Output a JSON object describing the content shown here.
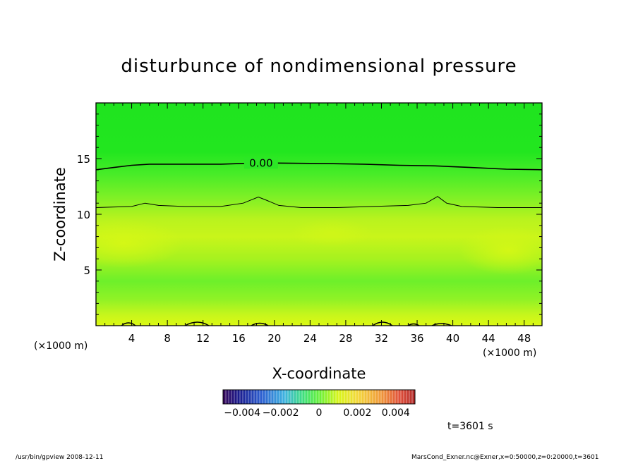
{
  "chart_data": {
    "type": "heatmap",
    "title": "disturbunce of nondimensional pressure",
    "xlabel": "X-coordinate",
    "ylabel": "Z-coordinate",
    "x_unit_left": "(×1000 m)",
    "x_unit_right": "(×1000 m)",
    "xlim": [
      0,
      50
    ],
    "ylim": [
      0,
      20
    ],
    "x_ticks": [
      4,
      8,
      12,
      16,
      20,
      24,
      28,
      32,
      36,
      40,
      44,
      48
    ],
    "y_ticks": [
      5,
      10,
      15
    ],
    "contour_label": "0.00",
    "contour_zero_z": [
      [
        0,
        14.0
      ],
      [
        2,
        14.2
      ],
      [
        4,
        14.4
      ],
      [
        6,
        14.5
      ],
      [
        10,
        14.5
      ],
      [
        14,
        14.5
      ],
      [
        16,
        14.55
      ],
      [
        18,
        14.6
      ],
      [
        20,
        14.6
      ],
      [
        26,
        14.55
      ],
      [
        30,
        14.5
      ],
      [
        34,
        14.4
      ],
      [
        38,
        14.35
      ],
      [
        42,
        14.2
      ],
      [
        46,
        14.05
      ],
      [
        50,
        14.0
      ]
    ],
    "contour_second_z": [
      [
        0,
        10.6
      ],
      [
        4,
        10.7
      ],
      [
        5.5,
        11.0
      ],
      [
        7,
        10.8
      ],
      [
        10,
        10.7
      ],
      [
        14,
        10.7
      ],
      [
        16.5,
        11.0
      ],
      [
        18.2,
        11.55
      ],
      [
        19,
        11.3
      ],
      [
        20.5,
        10.8
      ],
      [
        23,
        10.6
      ],
      [
        27,
        10.6
      ],
      [
        31,
        10.7
      ],
      [
        35,
        10.8
      ],
      [
        37,
        11.0
      ],
      [
        38.3,
        11.6
      ],
      [
        39.3,
        11.0
      ],
      [
        41,
        10.7
      ],
      [
        45,
        10.6
      ],
      [
        50,
        10.6
      ]
    ],
    "colorbar": {
      "min": -0.005,
      "max": 0.005,
      "tick_labels": [
        "−0.004",
        "−0.002",
        "0",
        "0.002",
        "0.004"
      ],
      "tick_values": [
        -0.004,
        -0.002,
        0,
        0.002,
        0.004
      ]
    },
    "time_label": "t=3601 s"
  },
  "footer": {
    "left": "/usr/bin/gpview   2008-12-11",
    "right": "MarsCond_Exner.nc@Exner,x=0:50000,z=0:20000,t=3601"
  },
  "colors": {
    "top_field": "#1fe61f",
    "upper_mid": "#3ded2a",
    "mid_field": "#c8f51a",
    "low_field": "#6ef02a",
    "bottom_field": "#d8f814",
    "contour": "#000000"
  }
}
